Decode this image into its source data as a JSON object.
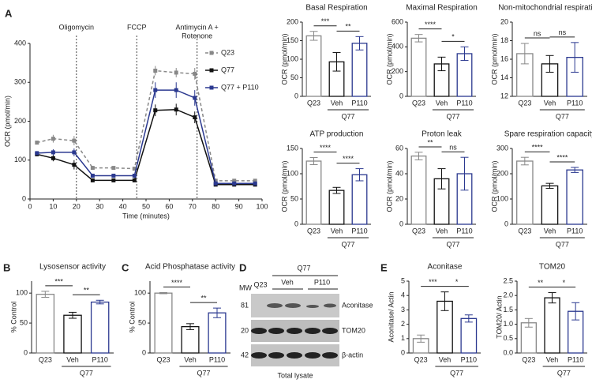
{
  "chart_data": [
    {
      "type": "line",
      "panel": "A",
      "xlabel": "Time (minutes)",
      "ylabel": "OCR (pmol/min)",
      "x": [
        3,
        10,
        19,
        27,
        36,
        45,
        54,
        63,
        71,
        80,
        88,
        97
      ],
      "xlim": [
        0,
        100
      ],
      "xticks": [
        0,
        10,
        20,
        30,
        40,
        50,
        60,
        70,
        80,
        90,
        100
      ],
      "ylim": [
        0,
        400
      ],
      "yticks": [
        0,
        100,
        200,
        300,
        400
      ],
      "injections": [
        {
          "x": 20,
          "label": [
            "Oligomycin"
          ]
        },
        {
          "x": 46,
          "label": [
            "FCCP"
          ]
        },
        {
          "x": 72,
          "label": [
            "Antimycin A +",
            "Rotenone"
          ]
        }
      ],
      "series": [
        {
          "name": "Q23",
          "color": "#888888",
          "dashed": true,
          "values": [
            145,
            155,
            150,
            80,
            80,
            78,
            330,
            325,
            322,
            47,
            47,
            47
          ],
          "errors": [
            5,
            10,
            12,
            5,
            4,
            4,
            12,
            12,
            15,
            4,
            4,
            4
          ]
        },
        {
          "name": "Q77",
          "color": "#111111",
          "dashed": false,
          "values": [
            115,
            105,
            88,
            48,
            48,
            48,
            228,
            230,
            210,
            37,
            37,
            37
          ],
          "errors": [
            5,
            8,
            12,
            4,
            3,
            3,
            15,
            15,
            15,
            3,
            3,
            3
          ]
        },
        {
          "name": "Q77 + P110",
          "color": "#2b3990",
          "dashed": false,
          "values": [
            118,
            120,
            120,
            60,
            60,
            60,
            280,
            280,
            260,
            40,
            40,
            40
          ],
          "errors": [
            5,
            8,
            10,
            4,
            3,
            3,
            20,
            20,
            20,
            3,
            3,
            3
          ]
        }
      ]
    },
    {
      "type": "bar",
      "title": "Basal Respiration",
      "ylabel": "OCR (pmol/min)",
      "categories": [
        "Q23",
        "Veh",
        "P110"
      ],
      "group": "Q77",
      "colors": [
        "#888888",
        "#111111",
        "#2b3990"
      ],
      "values": [
        163,
        93,
        143
      ],
      "errors": [
        12,
        25,
        18
      ],
      "ylim": [
        0,
        200
      ],
      "yticks": [
        0,
        50,
        100,
        150,
        200
      ],
      "significance": [
        "***",
        "**"
      ]
    },
    {
      "type": "bar",
      "title": "Maximal Respiration",
      "ylabel": "OCR (pmol/min)",
      "categories": [
        "Q23",
        "Veh",
        "P110"
      ],
      "group": "Q77",
      "colors": [
        "#888888",
        "#111111",
        "#2b3990"
      ],
      "values": [
        470,
        262,
        345
      ],
      "errors": [
        30,
        55,
        55
      ],
      "ylim": [
        0,
        600
      ],
      "yticks": [
        0,
        200,
        400,
        600
      ],
      "significance": [
        "****",
        "*"
      ]
    },
    {
      "type": "bar",
      "title": "Non-mitochondrial respiration",
      "ylabel": "OCR (pmol/min)",
      "categories": [
        "Q23",
        "Veh",
        "P110"
      ],
      "group": "Q77",
      "colors": [
        "#888888",
        "#111111",
        "#2b3990"
      ],
      "values": [
        16.6,
        15.5,
        16.2
      ],
      "errors": [
        1.1,
        0.9,
        1.6
      ],
      "ylim": [
        12,
        20
      ],
      "yticks": [
        12,
        14,
        16,
        18,
        20
      ],
      "significance": [
        "ns",
        "ns"
      ]
    },
    {
      "type": "bar",
      "title": "ATP production",
      "ylabel": "OCR (pmol/min)",
      "categories": [
        "Q23",
        "Veh",
        "P110"
      ],
      "group": "Q77",
      "colors": [
        "#888888",
        "#111111",
        "#2b3990"
      ],
      "values": [
        125,
        67,
        98
      ],
      "errors": [
        7,
        6,
        12
      ],
      "ylim": [
        0,
        150
      ],
      "yticks": [
        0,
        50,
        100,
        150
      ],
      "significance": [
        "****",
        "****"
      ]
    },
    {
      "type": "bar",
      "title": "Proton leak",
      "ylabel": "OCR (pmol/min)",
      "categories": [
        "Q23",
        "Veh",
        "P110"
      ],
      "group": "Q77",
      "colors": [
        "#888888",
        "#111111",
        "#2b3990"
      ],
      "values": [
        54,
        36,
        40
      ],
      "errors": [
        3,
        8,
        13
      ],
      "ylim": [
        0,
        60
      ],
      "yticks": [
        0,
        20,
        40,
        60
      ],
      "significance": [
        "**",
        "ns"
      ]
    },
    {
      "type": "bar",
      "title": "Spare respiration capacity",
      "ylabel": "OCR (pmol/min)",
      "categories": [
        "Q23",
        "Veh",
        "P110"
      ],
      "group": "Q77",
      "colors": [
        "#888888",
        "#111111",
        "#2b3990"
      ],
      "values": [
        250,
        152,
        215
      ],
      "errors": [
        15,
        10,
        10
      ],
      "ylim": [
        0,
        300
      ],
      "yticks": [
        0,
        100,
        200,
        300
      ],
      "significance": [
        "****",
        "****"
      ]
    },
    {
      "type": "bar",
      "panel": "B",
      "title": "Lysosensor activity",
      "ylabel": "% Control",
      "categories": [
        "Q23",
        "Veh",
        "P110"
      ],
      "group": "Q77",
      "colors": [
        "#888888",
        "#111111",
        "#2b3990"
      ],
      "values": [
        98,
        63,
        85
      ],
      "errors": [
        5,
        5,
        3
      ],
      "ylim": [
        0,
        120
      ],
      "yticks": [
        0,
        50,
        100
      ],
      "significance": [
        "***",
        "**"
      ]
    },
    {
      "type": "bar",
      "panel": "C",
      "title": "Acid Phosphatase activity",
      "ylabel": "% Control",
      "categories": [
        "Q23",
        "Veh",
        "P110"
      ],
      "group": "Q77",
      "colors": [
        "#888888",
        "#111111",
        "#2b3990"
      ],
      "values": [
        100,
        44,
        67
      ],
      "errors": [
        1,
        5,
        8
      ],
      "ylim": [
        0,
        120
      ],
      "yticks": [
        0,
        50,
        100
      ],
      "significance": [
        "****",
        "**"
      ]
    },
    {
      "type": "bar",
      "panel": "E",
      "title": "Aconitase",
      "ylabel": "Aconitase/ Actin",
      "categories": [
        "Q23",
        "Veh",
        "P110"
      ],
      "group": "Q77",
      "colors": [
        "#888888",
        "#111111",
        "#2b3990"
      ],
      "values": [
        1.0,
        3.6,
        2.4
      ],
      "errors": [
        0.25,
        0.65,
        0.25
      ],
      "ylim": [
        0,
        5
      ],
      "yticks": [
        0,
        1,
        2,
        3,
        4,
        5
      ],
      "significance": [
        "***",
        "*"
      ]
    },
    {
      "type": "bar",
      "title": "TOM20",
      "ylabel": "TOM20/ Actin",
      "categories": [
        "Q23",
        "Veh",
        "P110"
      ],
      "group": "Q77",
      "colors": [
        "#888888",
        "#111111",
        "#2b3990"
      ],
      "values": [
        1.05,
        1.92,
        1.45
      ],
      "errors": [
        0.15,
        0.18,
        0.3
      ],
      "ylim": [
        0,
        2.5
      ],
      "yticks": [
        {
          "value": 0,
          "label": "0.0"
        },
        0.5,
        {
          "value": 1,
          "label": "1.0"
        },
        1.5,
        {
          "value": 2,
          "label": "2.0"
        },
        2.5
      ],
      "significance": [
        "**",
        "*"
      ]
    }
  ],
  "blot": {
    "panel": "D",
    "group": "Q77",
    "mw_header": "MW",
    "lanes": [
      "Q23",
      "Veh",
      "P110"
    ],
    "caption": "Total lysate",
    "rows": [
      {
        "mw": "81",
        "label": "Aconitase"
      },
      {
        "mw": "20",
        "label": "TOM20"
      },
      {
        "mw": "42",
        "label": "β-actin"
      }
    ]
  }
}
